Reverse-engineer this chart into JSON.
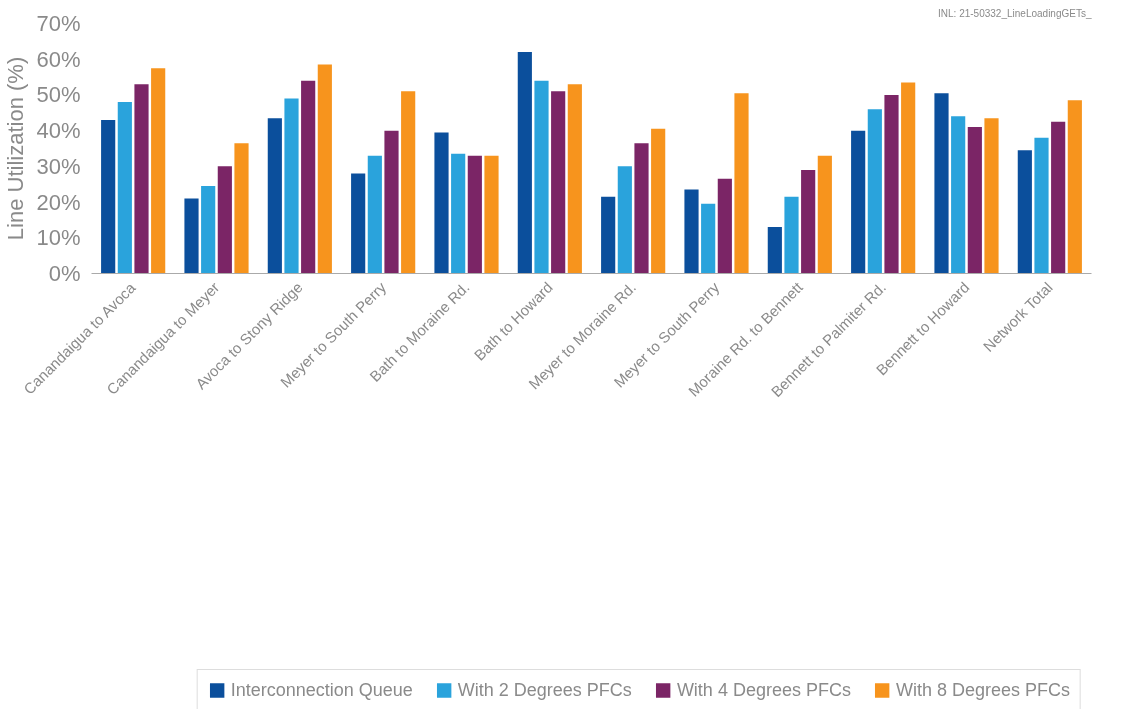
{
  "chart_data": {
    "type": "bar",
    "ylabel": "Line Utilization (%)",
    "categories": [
      "Canandaigua to Avoca",
      "Canandaigua to Meyer",
      "Avoca to Stony Ridge",
      "Meyer to South Perry",
      "Bath to Moraine Rd.",
      "Bath to Howard",
      "Meyer to Moraine Rd.",
      "Meyer to South Perry",
      "Moraine Rd. to Bennett",
      "Bennett to Palmiter Rd.",
      "Bennett to Howard",
      "Network Total"
    ],
    "series": [
      {
        "name": "Interconnection Queue",
        "color": "#0b4f9c",
        "values": [
          43,
          21,
          43.5,
          28,
          39.5,
          62,
          21.5,
          23.5,
          13,
          40,
          50.5,
          34.5
        ]
      },
      {
        "name": "With 2 Degrees PFCs",
        "color": "#2aa3dc",
        "values": [
          48,
          24.5,
          49,
          33,
          33.5,
          54,
          30,
          19.5,
          21.5,
          46,
          44,
          38
        ]
      },
      {
        "name": "With 4 Degrees PFCs",
        "color": "#7b2566",
        "values": [
          53,
          30,
          54,
          40,
          33,
          51,
          36.5,
          26.5,
          29,
          50,
          41,
          42.5
        ]
      },
      {
        "name": "With 8 Degrees PFCs",
        "color": "#f7941d",
        "values": [
          57.5,
          36.5,
          58.5,
          51,
          33,
          53,
          40.5,
          50.5,
          33,
          53.5,
          43.5,
          48.5
        ]
      }
    ],
    "ylim": [
      0,
      70
    ],
    "yticks": [
      {
        "value": 0,
        "label": "0%"
      },
      {
        "value": 10,
        "label": "10%"
      },
      {
        "value": 20,
        "label": "20%"
      },
      {
        "value": 30,
        "label": "30%"
      },
      {
        "value": 40,
        "label": "40%"
      },
      {
        "value": 50,
        "label": "50%"
      },
      {
        "value": 60,
        "label": "60%"
      },
      {
        "value": 70,
        "label": "70%"
      }
    ],
    "grid": false,
    "legend": "bottom",
    "annotations": [
      "INL: 21-50332_LineLoadingGETs_"
    ]
  }
}
